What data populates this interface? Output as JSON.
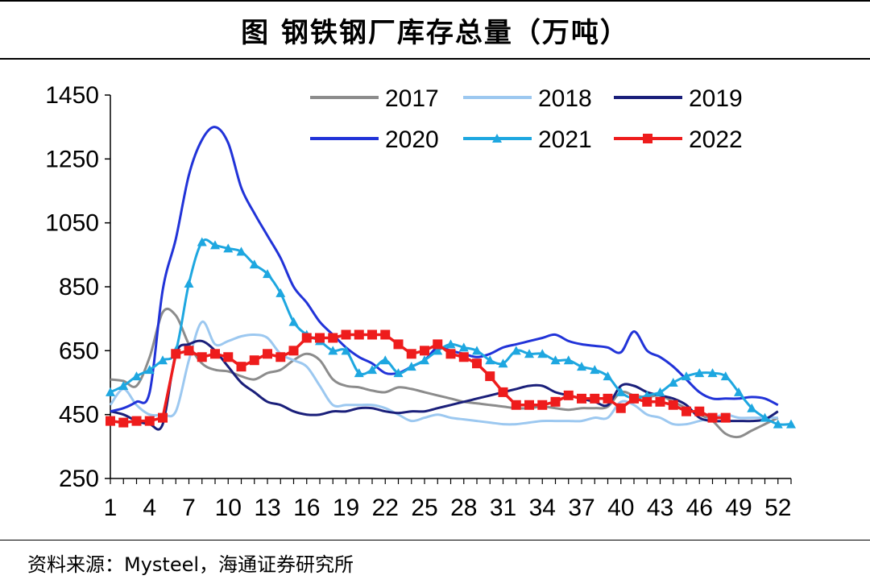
{
  "title": "图  钢铁钢厂库存总量（万吨）",
  "source": "资料来源：Mysteel，海通证券研究所",
  "chart_data": {
    "type": "line",
    "title": "钢铁钢厂库存总量（万吨）",
    "xlabel": "",
    "ylabel": "",
    "xlim": [
      1,
      53
    ],
    "ylim": [
      250,
      1450
    ],
    "y_ticks": [
      250,
      450,
      650,
      850,
      1050,
      1250,
      1450
    ],
    "x_ticks": [
      1,
      4,
      7,
      10,
      13,
      16,
      19,
      22,
      25,
      28,
      31,
      34,
      37,
      40,
      43,
      46,
      49,
      52
    ],
    "legend_position": "top-right",
    "grid": false,
    "series": [
      {
        "name": "2017",
        "color": "#8c8c8c",
        "marker": "none",
        "x": [
          1,
          2,
          3,
          4,
          5,
          6,
          7,
          8,
          9,
          10,
          11,
          12,
          13,
          14,
          15,
          16,
          17,
          18,
          19,
          20,
          21,
          22,
          23,
          24,
          25,
          26,
          27,
          28,
          29,
          30,
          31,
          32,
          33,
          34,
          35,
          36,
          37,
          38,
          39,
          40,
          41,
          42,
          43,
          44,
          45,
          46,
          47,
          48,
          49,
          50,
          51,
          52
        ],
        "y": [
          560,
          555,
          540,
          630,
          770,
          760,
          670,
          610,
          590,
          585,
          570,
          560,
          580,
          590,
          620,
          640,
          620,
          560,
          540,
          535,
          525,
          520,
          535,
          530,
          520,
          510,
          500,
          490,
          485,
          480,
          475,
          470,
          470,
          475,
          470,
          465,
          470,
          470,
          475,
          520,
          510,
          505,
          510,
          490,
          470,
          450,
          430,
          390,
          380,
          400,
          420,
          440
        ]
      },
      {
        "name": "2018",
        "color": "#9cc8f0",
        "marker": "none",
        "x": [
          1,
          2,
          3,
          4,
          5,
          6,
          7,
          8,
          9,
          10,
          11,
          12,
          13,
          14,
          15,
          16,
          17,
          18,
          19,
          20,
          21,
          22,
          23,
          24,
          25,
          26,
          27,
          28,
          29,
          30,
          31,
          32,
          33,
          34,
          35,
          36,
          37,
          38,
          39,
          40,
          41,
          42,
          43,
          44,
          45,
          46,
          47,
          48,
          49,
          50,
          51,
          52
        ],
        "y": [
          480,
          530,
          480,
          450,
          450,
          460,
          620,
          740,
          670,
          680,
          695,
          700,
          690,
          640,
          620,
          600,
          540,
          480,
          480,
          480,
          480,
          470,
          450,
          430,
          440,
          450,
          440,
          435,
          430,
          425,
          420,
          420,
          425,
          430,
          430,
          430,
          430,
          440,
          440,
          490,
          480,
          450,
          440,
          420,
          420,
          430,
          440,
          450,
          440,
          440,
          440,
          440
        ]
      },
      {
        "name": "2019",
        "color": "#1a1f7a",
        "marker": "none",
        "x": [
          1,
          2,
          3,
          4,
          5,
          6,
          7,
          8,
          9,
          10,
          11,
          12,
          13,
          14,
          15,
          16,
          17,
          18,
          19,
          20,
          21,
          22,
          23,
          24,
          25,
          26,
          27,
          28,
          29,
          30,
          31,
          32,
          33,
          34,
          35,
          36,
          37,
          38,
          39,
          40,
          41,
          42,
          43,
          44,
          45,
          46,
          47,
          48,
          49,
          50,
          51,
          52
        ],
        "y": [
          460,
          450,
          430,
          420,
          420,
          640,
          670,
          680,
          650,
          600,
          550,
          520,
          490,
          480,
          460,
          450,
          450,
          460,
          460,
          470,
          470,
          460,
          455,
          460,
          460,
          470,
          480,
          490,
          500,
          510,
          520,
          530,
          540,
          540,
          520,
          510,
          500,
          490,
          480,
          540,
          540,
          520,
          510,
          500,
          480,
          440,
          430,
          430,
          430,
          430,
          435,
          460
        ]
      },
      {
        "name": "2020",
        "color": "#2133d8",
        "marker": "none",
        "x": [
          1,
          2,
          3,
          4,
          5,
          6,
          7,
          8,
          9,
          10,
          11,
          12,
          13,
          14,
          15,
          16,
          17,
          18,
          19,
          20,
          21,
          22,
          23,
          24,
          25,
          26,
          27,
          28,
          29,
          30,
          31,
          32,
          33,
          34,
          35,
          36,
          37,
          38,
          39,
          40,
          41,
          42,
          43,
          44,
          45,
          46,
          47,
          48,
          49,
          50,
          51,
          52
        ],
        "y": [
          460,
          470,
          490,
          520,
          840,
          1000,
          1200,
          1310,
          1350,
          1300,
          1160,
          1080,
          1010,
          940,
          850,
          800,
          740,
          700,
          660,
          630,
          610,
          580,
          580,
          600,
          620,
          660,
          650,
          640,
          630,
          640,
          660,
          670,
          680,
          690,
          700,
          680,
          670,
          665,
          660,
          645,
          710,
          650,
          630,
          600,
          560,
          520,
          500,
          500,
          500,
          505,
          500,
          480
        ]
      },
      {
        "name": "2021",
        "color": "#1ea7e0",
        "marker": "triangle",
        "x": [
          1,
          2,
          3,
          4,
          5,
          6,
          7,
          8,
          9,
          10,
          11,
          12,
          13,
          14,
          15,
          16,
          17,
          18,
          19,
          20,
          21,
          22,
          23,
          24,
          25,
          26,
          27,
          28,
          29,
          30,
          31,
          32,
          33,
          34,
          35,
          36,
          37,
          38,
          39,
          40,
          41,
          42,
          43,
          44,
          45,
          46,
          47,
          48,
          49,
          50,
          51,
          52,
          53
        ],
        "y": [
          520,
          540,
          570,
          590,
          620,
          650,
          860,
          990,
          980,
          970,
          960,
          920,
          890,
          830,
          740,
          700,
          680,
          650,
          650,
          580,
          590,
          620,
          580,
          600,
          620,
          650,
          670,
          660,
          650,
          620,
          610,
          650,
          640,
          640,
          620,
          620,
          600,
          590,
          570,
          520,
          500,
          510,
          520,
          550,
          570,
          580,
          580,
          570,
          520,
          470,
          440,
          420,
          420
        ]
      },
      {
        "name": "2022",
        "color": "#ee1c1c",
        "marker": "square",
        "x": [
          1,
          2,
          3,
          4,
          5,
          6,
          7,
          8,
          9,
          10,
          11,
          12,
          13,
          14,
          15,
          16,
          17,
          18,
          19,
          20,
          21,
          22,
          23,
          24,
          25,
          26,
          27,
          28,
          29,
          30,
          31,
          32,
          33,
          34,
          35,
          36,
          37,
          38,
          39,
          40,
          41,
          42,
          43,
          44,
          45,
          46,
          47,
          48
        ],
        "y": [
          430,
          425,
          430,
          430,
          440,
          640,
          650,
          630,
          640,
          630,
          600,
          620,
          640,
          630,
          650,
          690,
          690,
          690,
          700,
          700,
          700,
          700,
          670,
          640,
          650,
          670,
          640,
          630,
          610,
          570,
          520,
          480,
          480,
          480,
          490,
          510,
          500,
          500,
          500,
          470,
          500,
          490,
          490,
          480,
          460,
          460,
          440,
          440
        ]
      }
    ]
  }
}
